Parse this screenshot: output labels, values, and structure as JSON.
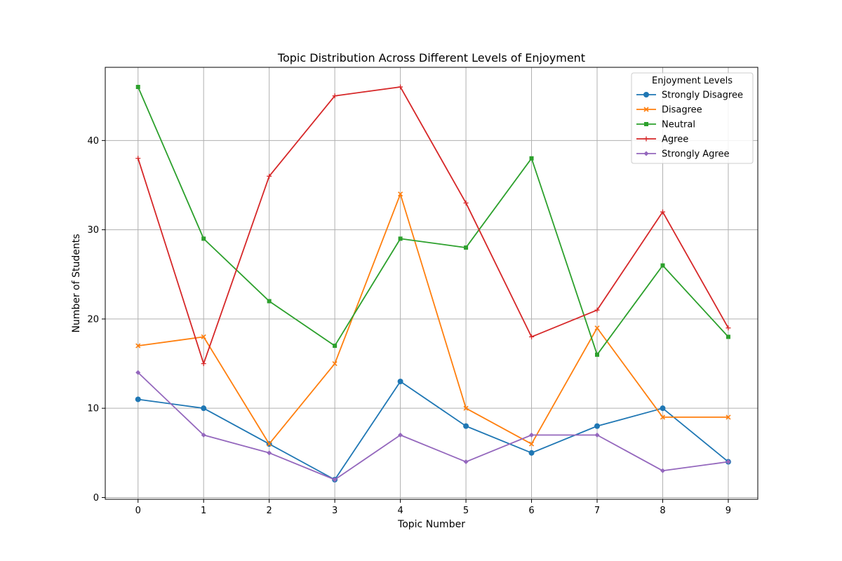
{
  "chart_data": {
    "type": "line",
    "title": "Topic Distribution Across Different Levels of Enjoyment",
    "xlabel": "Topic Number",
    "ylabel": "Number of Students",
    "x": [
      0,
      1,
      2,
      3,
      4,
      5,
      6,
      7,
      8,
      9
    ],
    "xlim": [
      -0.5,
      9.45
    ],
    "ylim": [
      -0.2,
      48.2
    ],
    "yticks": [
      0,
      10,
      20,
      30,
      40
    ],
    "grid": true,
    "legend": {
      "title": "Enjoyment Levels",
      "placement": "top-right"
    },
    "series": [
      {
        "name": "Strongly Disagree",
        "color": "#1f77b4",
        "marker": "circle",
        "values": [
          11,
          10,
          6,
          2,
          13,
          8,
          5,
          8,
          10,
          4
        ]
      },
      {
        "name": "Disagree",
        "color": "#ff7f0e",
        "marker": "x",
        "values": [
          17,
          18,
          6,
          15,
          34,
          10,
          6,
          19,
          9,
          9
        ]
      },
      {
        "name": "Neutral",
        "color": "#2ca02c",
        "marker": "square",
        "values": [
          46,
          29,
          22,
          17,
          29,
          28,
          38,
          16,
          26,
          18
        ]
      },
      {
        "name": "Agree",
        "color": "#d62728",
        "marker": "plus",
        "values": [
          38,
          15,
          36,
          45,
          46,
          33,
          18,
          21,
          32,
          19
        ]
      },
      {
        "name": "Strongly Agree",
        "color": "#9467bd",
        "marker": "diamond",
        "values": [
          14,
          7,
          5,
          2,
          7,
          4,
          7,
          7,
          3,
          4
        ]
      }
    ]
  }
}
